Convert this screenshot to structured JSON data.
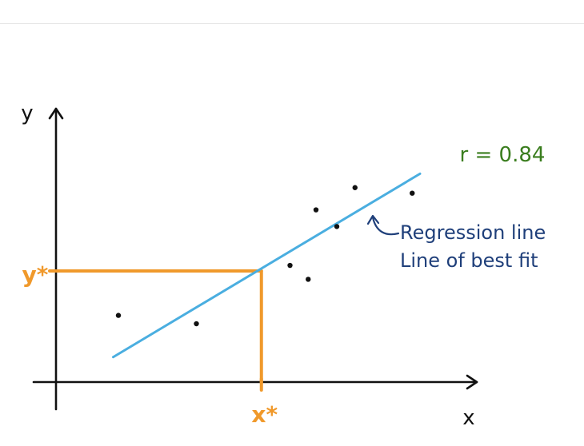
{
  "chart_data": {
    "type": "scatter",
    "xlabel": "x",
    "ylabel": "y",
    "points": [
      {
        "x": 1.2,
        "y": 1.2
      },
      {
        "x": 2.7,
        "y": 1.05
      },
      {
        "x": 4.5,
        "y": 2.1
      },
      {
        "x": 4.85,
        "y": 1.85
      },
      {
        "x": 5.0,
        "y": 3.1
      },
      {
        "x": 5.4,
        "y": 2.8
      },
      {
        "x": 5.75,
        "y": 3.5
      },
      {
        "x": 6.85,
        "y": 3.4
      }
    ],
    "regression_line": {
      "x1": 1.1,
      "y1": 0.45,
      "x2": 7.0,
      "y2": 3.75
    },
    "highlight": {
      "x": 3.95,
      "y": 2.0,
      "x_label": "x*",
      "y_label": "y*"
    },
    "annotations": {
      "r_text": "r = 0.84",
      "line_label_1": "Regression line",
      "line_label_2": "Line of best fit"
    },
    "xlim": [
      0,
      8
    ],
    "ylim": [
      0,
      5.2
    ],
    "colors": {
      "axis": "#111111",
      "points": "#111111",
      "regression": "#4aaee0",
      "highlight": "#f0992b",
      "r_text": "#3a7d1e",
      "label_text": "#1f3f7a"
    }
  }
}
